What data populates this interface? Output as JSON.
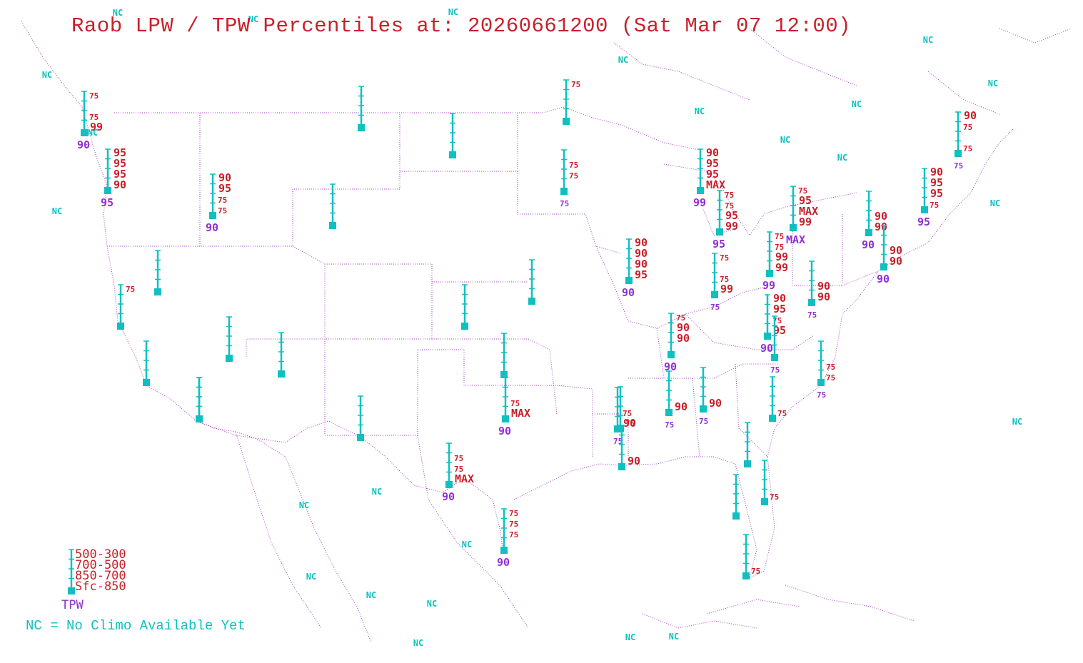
{
  "title": "Raob LPW / TPW Percentiles at: 20260661200 (Sat Mar 07 12:00)",
  "legend": {
    "layers": [
      "500-300",
      "700-500",
      "850-700",
      "Sfc-850"
    ],
    "tpw_label": "TPW",
    "nc_note": "NC = No Climo Available Yet"
  },
  "colors": {
    "stations": "#10c0c0",
    "lpw": "#c8202a",
    "tpw": "#9030d0",
    "nc": "#10c0c0",
    "borders": "#a040c0"
  },
  "nc_marker": "NC",
  "nc_count": 24,
  "stations": [
    {
      "id": "s01",
      "labels": {
        "l1": "75",
        "l3": "75",
        "l4": "99"
      },
      "tpw": "90"
    },
    {
      "id": "s02",
      "labels": {
        "l1": "95",
        "l2": "95",
        "l3": "95",
        "l4": "90"
      },
      "tpw": "95"
    },
    {
      "id": "s03",
      "labels": {
        "l1": "75"
      }
    },
    {
      "id": "s04",
      "labels": {}
    },
    {
      "id": "s05",
      "labels": {}
    },
    {
      "id": "s06",
      "labels": {
        "l1": "90",
        "l2": "95",
        "l3": "75",
        "l4": "75"
      },
      "tpw": "90"
    },
    {
      "id": "s07",
      "labels": {
        "l2": "75",
        "l3": "75"
      },
      "tpw": "75"
    },
    {
      "id": "s08",
      "labels": {}
    },
    {
      "id": "s09",
      "labels": {}
    },
    {
      "id": "s10",
      "labels": {
        "l1": "75"
      }
    },
    {
      "id": "s11",
      "labels": {}
    },
    {
      "id": "s12",
      "labels": {}
    },
    {
      "id": "s13",
      "labels": {}
    },
    {
      "id": "s14",
      "labels": {}
    },
    {
      "id": "s15",
      "labels": {}
    },
    {
      "id": "s16",
      "labels": {}
    },
    {
      "id": "s17",
      "labels": {}
    },
    {
      "id": "s18",
      "labels": {}
    },
    {
      "id": "s19",
      "labels": {
        "l3": "75",
        "l4": "MAX"
      },
      "tpw": "90"
    },
    {
      "id": "s20",
      "labels": {
        "l2": "75",
        "l3": "75",
        "l4": "MAX"
      },
      "tpw": "90"
    },
    {
      "id": "s21",
      "labels": {
        "l1": "75",
        "l2": "75",
        "l3": "75"
      },
      "tpw": "90"
    },
    {
      "id": "s22",
      "labels": {
        "l1": "90",
        "l2": "90",
        "l3": "90",
        "l4": "95"
      },
      "tpw": "90"
    },
    {
      "id": "s23",
      "labels": {
        "l1": "90",
        "l2": "95",
        "l3": "95",
        "l4": "MAX"
      },
      "tpw": "99"
    },
    {
      "id": "s24",
      "labels": {
        "l1": "75",
        "l2": "75",
        "l3": "95",
        "l4": "99"
      },
      "tpw": "95"
    },
    {
      "id": "s25",
      "labels": {
        "l1": "75",
        "l3": "75",
        "l4": "99"
      },
      "tpw": "75"
    },
    {
      "id": "s26",
      "labels": {
        "l1": "75",
        "l2": "90",
        "l3": "90"
      },
      "tpw": "90"
    },
    {
      "id": "s27",
      "labels": {
        "l3": "75",
        "l4": "90"
      },
      "tpw": "75"
    },
    {
      "id": "s28",
      "labels": {
        "l4": "90"
      },
      "tpw": "75"
    },
    {
      "id": "s29",
      "labels": {
        "l4": "90"
      },
      "tpw": "75"
    },
    {
      "id": "s30",
      "labels": {
        "l4": "90"
      }
    },
    {
      "id": "s31",
      "labels": {
        "l1": "75",
        "l2": "95",
        "l3": "MAX",
        "l4": "99"
      },
      "tpw": "MAX"
    },
    {
      "id": "s32",
      "labels": {
        "l1": "75",
        "l2": "75",
        "l3": "99",
        "l4": "99"
      },
      "tpw": "99"
    },
    {
      "id": "s33",
      "labels": {
        "l1": "90",
        "l2": "95",
        "l3": "75",
        "l4": "95"
      },
      "tpw": "90"
    },
    {
      "id": "s34",
      "labels": {
        "l3": "90",
        "l4": "90"
      },
      "tpw": "75"
    },
    {
      "id": "s35",
      "labels": {},
      "tpw": "75"
    },
    {
      "id": "s36",
      "labels": {
        "l3": "75",
        "l4": "75"
      },
      "tpw": "75"
    },
    {
      "id": "s37",
      "labels": {
        "l4": "75"
      }
    },
    {
      "id": "s38",
      "labels": {
        "l3": "90",
        "l4": "90"
      },
      "tpw": "90"
    },
    {
      "id": "s39",
      "labels": {
        "l1": "90",
        "l2": "95",
        "l3": "95",
        "l4": "75"
      },
      "tpw": "95"
    },
    {
      "id": "s40",
      "labels": {
        "l3": "90",
        "l4": "90"
      },
      "tpw": "90"
    },
    {
      "id": "s41",
      "labels": {
        "l1": "90",
        "l2": "75",
        "l4": "75"
      },
      "tpw": "75"
    },
    {
      "id": "s42",
      "labels": {}
    },
    {
      "id": "s43",
      "labels": {
        "l4": "75"
      }
    },
    {
      "id": "s44",
      "labels": {}
    },
    {
      "id": "s45",
      "labels": {
        "l4": "75"
      }
    },
    {
      "id": "s46",
      "labels": {
        "l4": "75"
      }
    },
    {
      "id": "s47",
      "labels": {}
    }
  ]
}
